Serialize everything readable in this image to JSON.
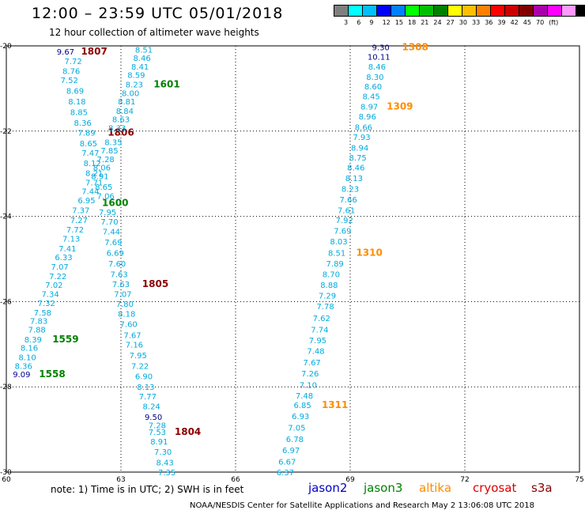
{
  "header": {
    "title": "12:00 – 23:59 UTC 05/01/2018",
    "subtitle": "12 hour collection of altimeter wave heights"
  },
  "colorbar": {
    "colors": [
      "#7f7f7f",
      "#00ffff",
      "#00bfff",
      "#0000ff",
      "#007fff",
      "#00ff00",
      "#00bf00",
      "#008000",
      "#ffff00",
      "#ffbf00",
      "#ff8000",
      "#ff0000",
      "#cc0000",
      "#800000",
      "#aa00aa",
      "#ff00ff",
      "#ff99ff",
      "#000000"
    ],
    "labels": [
      "3",
      "6",
      "9",
      "12",
      "15",
      "18",
      "21",
      "24",
      "27",
      "30",
      "33",
      "36",
      "39",
      "42",
      "45",
      "70",
      "(ft)"
    ]
  },
  "map": {
    "x_ticks": [
      "60",
      "63",
      "66",
      "69",
      "72",
      "75"
    ],
    "y_ticks": [
      "-20",
      "-22",
      "-24",
      "-26",
      "-28",
      "-30"
    ],
    "lon_range": [
      60,
      75
    ],
    "lat_range": [
      -30,
      -20
    ]
  },
  "tracks": [
    {
      "lon": 61.55,
      "lat": -20.13,
      "text": "9.67",
      "color": "#00008b"
    },
    {
      "lon": 62.3,
      "lat": -20.13,
      "text": "1807",
      "color": "#8b0000",
      "bold": true
    },
    {
      "lon": 61.75,
      "lat": -20.35,
      "text": "7.72",
      "color": "#00aadd"
    },
    {
      "lon": 61.7,
      "lat": -20.58,
      "text": "8.76",
      "color": "#00aadd"
    },
    {
      "lon": 61.65,
      "lat": -20.8,
      "text": "7.52",
      "color": "#00aadd"
    },
    {
      "lon": 61.8,
      "lat": -21.05,
      "text": "8.69",
      "color": "#00aadd"
    },
    {
      "lon": 61.85,
      "lat": -21.3,
      "text": "8.18",
      "color": "#00aadd"
    },
    {
      "lon": 61.9,
      "lat": -21.55,
      "text": "8.85",
      "color": "#00aadd"
    },
    {
      "lon": 62.0,
      "lat": -21.8,
      "text": "8.36",
      "color": "#00aadd"
    },
    {
      "lon": 62.1,
      "lat": -22.03,
      "text": "7.89",
      "color": "#00aadd"
    },
    {
      "lon": 63.0,
      "lat": -22.03,
      "text": "1806",
      "color": "#8b0000",
      "bold": true
    },
    {
      "lon": 62.15,
      "lat": -22.28,
      "text": "8.65",
      "color": "#00aadd"
    },
    {
      "lon": 62.2,
      "lat": -22.5,
      "text": "7.47",
      "color": "#00aadd"
    },
    {
      "lon": 62.25,
      "lat": -22.75,
      "text": "8.12",
      "color": "#00aadd"
    },
    {
      "lon": 62.3,
      "lat": -22.98,
      "text": "8.21",
      "color": "#00aadd"
    },
    {
      "lon": 62.3,
      "lat": -23.2,
      "text": "7.71",
      "color": "#00aadd"
    },
    {
      "lon": 62.2,
      "lat": -23.4,
      "text": "7.44",
      "color": "#00aadd"
    },
    {
      "lon": 62.1,
      "lat": -23.62,
      "text": "6.95",
      "color": "#00aadd"
    },
    {
      "lon": 61.95,
      "lat": -23.85,
      "text": "7.37",
      "color": "#00aadd"
    },
    {
      "lon": 61.9,
      "lat": -24.08,
      "text": "7.27",
      "color": "#00aadd"
    },
    {
      "lon": 61.8,
      "lat": -24.3,
      "text": "7.72",
      "color": "#00aadd"
    },
    {
      "lon": 61.7,
      "lat": -24.52,
      "text": "7.13",
      "color": "#00aadd"
    },
    {
      "lon": 61.6,
      "lat": -24.75,
      "text": "7.41",
      "color": "#00aadd"
    },
    {
      "lon": 61.5,
      "lat": -24.95,
      "text": "6.33",
      "color": "#00aadd"
    },
    {
      "lon": 61.4,
      "lat": -25.18,
      "text": "7.07",
      "color": "#00aadd"
    },
    {
      "lon": 61.35,
      "lat": -25.4,
      "text": "7.22",
      "color": "#00aadd"
    },
    {
      "lon": 61.25,
      "lat": -25.6,
      "text": "7.02",
      "color": "#00aadd"
    },
    {
      "lon": 61.15,
      "lat": -25.82,
      "text": "7.34",
      "color": "#00aadd"
    },
    {
      "lon": 61.05,
      "lat": -26.03,
      "text": "7.32",
      "color": "#00aadd"
    },
    {
      "lon": 60.95,
      "lat": -26.25,
      "text": "7.58",
      "color": "#00aadd"
    },
    {
      "lon": 60.85,
      "lat": -26.45,
      "text": "7.83",
      "color": "#00aadd"
    },
    {
      "lon": 60.8,
      "lat": -26.65,
      "text": "7.88",
      "color": "#00aadd"
    },
    {
      "lon": 60.7,
      "lat": -26.88,
      "text": "8.39",
      "color": "#00aadd"
    },
    {
      "lon": 61.55,
      "lat": -26.88,
      "text": "1559",
      "color": "#008000",
      "bold": true
    },
    {
      "lon": 60.6,
      "lat": -27.08,
      "text": "8.16",
      "color": "#00aadd"
    },
    {
      "lon": 60.55,
      "lat": -27.3,
      "text": "8.10",
      "color": "#00aadd"
    },
    {
      "lon": 60.45,
      "lat": -27.5,
      "text": "8.36",
      "color": "#00aadd"
    },
    {
      "lon": 60.4,
      "lat": -27.7,
      "text": "9.09",
      "color": "#00008b"
    },
    {
      "lon": 61.2,
      "lat": -27.7,
      "text": "1558",
      "color": "#008000",
      "bold": true
    },
    {
      "lon": 63.6,
      "lat": -20.08,
      "text": "8.51",
      "color": "#00aadd"
    },
    {
      "lon": 63.55,
      "lat": -20.28,
      "text": "8.46",
      "color": "#00aadd"
    },
    {
      "lon": 63.5,
      "lat": -20.48,
      "text": "8.41",
      "color": "#00aadd"
    },
    {
      "lon": 63.4,
      "lat": -20.68,
      "text": "8.59",
      "color": "#00aadd"
    },
    {
      "lon": 63.35,
      "lat": -20.9,
      "text": "8.23",
      "color": "#00aadd"
    },
    {
      "lon": 64.2,
      "lat": -20.9,
      "text": "1601",
      "color": "#008000",
      "bold": true
    },
    {
      "lon": 63.25,
      "lat": -21.1,
      "text": "8.00",
      "color": "#00aadd"
    },
    {
      "lon": 63.15,
      "lat": -21.3,
      "text": "8.81",
      "color": "#00aadd"
    },
    {
      "lon": 63.1,
      "lat": -21.52,
      "text": "8.84",
      "color": "#00aadd"
    },
    {
      "lon": 63.0,
      "lat": -21.72,
      "text": "8.63",
      "color": "#00aadd"
    },
    {
      "lon": 62.9,
      "lat": -21.92,
      "text": "8.33",
      "color": "#00aadd"
    },
    {
      "lon": 62.8,
      "lat": -22.25,
      "text": "8.35",
      "color": "#00aadd"
    },
    {
      "lon": 62.7,
      "lat": -22.45,
      "text": "7.85",
      "color": "#00aadd"
    },
    {
      "lon": 62.6,
      "lat": -22.65,
      "text": "7.28",
      "color": "#00aadd"
    },
    {
      "lon": 62.5,
      "lat": -22.85,
      "text": "8.06",
      "color": "#00aadd"
    },
    {
      "lon": 62.45,
      "lat": -23.05,
      "text": "8.91",
      "color": "#00aadd"
    },
    {
      "lon": 62.55,
      "lat": -23.3,
      "text": "8.65",
      "color": "#00aadd"
    },
    {
      "lon": 62.6,
      "lat": -23.52,
      "text": "7.06",
      "color": "#00aadd"
    },
    {
      "lon": 62.85,
      "lat": -23.68,
      "text": "1600",
      "color": "#008000",
      "bold": true
    },
    {
      "lon": 62.65,
      "lat": -23.9,
      "text": "7.95",
      "color": "#00aadd"
    },
    {
      "lon": 62.7,
      "lat": -24.12,
      "text": "7.70",
      "color": "#00aadd"
    },
    {
      "lon": 62.75,
      "lat": -24.35,
      "text": "7.44",
      "color": "#00aadd"
    },
    {
      "lon": 62.8,
      "lat": -24.6,
      "text": "7.69",
      "color": "#00aadd"
    },
    {
      "lon": 62.85,
      "lat": -24.85,
      "text": "6.69",
      "color": "#00aadd"
    },
    {
      "lon": 62.9,
      "lat": -25.1,
      "text": "7.60",
      "color": "#00aadd"
    },
    {
      "lon": 62.95,
      "lat": -25.35,
      "text": "7.63",
      "color": "#00aadd"
    },
    {
      "lon": 63.0,
      "lat": -25.58,
      "text": "7.63",
      "color": "#00aadd"
    },
    {
      "lon": 63.9,
      "lat": -25.58,
      "text": "1805",
      "color": "#8b0000",
      "bold": true
    },
    {
      "lon": 63.05,
      "lat": -25.82,
      "text": "7.07",
      "color": "#00aadd"
    },
    {
      "lon": 63.1,
      "lat": -26.05,
      "text": "7.80",
      "color": "#00aadd"
    },
    {
      "lon": 63.15,
      "lat": -26.28,
      "text": "8.18",
      "color": "#00aadd"
    },
    {
      "lon": 63.2,
      "lat": -26.52,
      "text": "7.60",
      "color": "#00aadd"
    },
    {
      "lon": 63.3,
      "lat": -26.78,
      "text": "7.67",
      "color": "#00aadd"
    },
    {
      "lon": 63.35,
      "lat": -27.0,
      "text": "7.16",
      "color": "#00aadd"
    },
    {
      "lon": 63.45,
      "lat": -27.25,
      "text": "7.95",
      "color": "#00aadd"
    },
    {
      "lon": 63.5,
      "lat": -27.5,
      "text": "7.22",
      "color": "#00aadd"
    },
    {
      "lon": 63.6,
      "lat": -27.75,
      "text": "6.90",
      "color": "#00aadd"
    },
    {
      "lon": 63.65,
      "lat": -28.0,
      "text": "8.13",
      "color": "#00aadd"
    },
    {
      "lon": 63.7,
      "lat": -28.22,
      "text": "7.77",
      "color": "#00aadd"
    },
    {
      "lon": 63.8,
      "lat": -28.45,
      "text": "8.24",
      "color": "#00aadd"
    },
    {
      "lon": 63.85,
      "lat": -28.7,
      "text": "9.50",
      "color": "#00008b"
    },
    {
      "lon": 63.95,
      "lat": -28.9,
      "text": "7.28",
      "color": "#00aadd"
    },
    {
      "lon": 63.95,
      "lat": -29.05,
      "text": "7.53",
      "color": "#00aadd"
    },
    {
      "lon": 64.75,
      "lat": -29.05,
      "text": "1804",
      "color": "#8b0000",
      "bold": true
    },
    {
      "lon": 64.0,
      "lat": -29.28,
      "text": "8.91",
      "color": "#00aadd"
    },
    {
      "lon": 64.1,
      "lat": -29.52,
      "text": "7.30",
      "color": "#00aadd"
    },
    {
      "lon": 64.15,
      "lat": -29.77,
      "text": "8.43",
      "color": "#00aadd"
    },
    {
      "lon": 64.2,
      "lat": -30.0,
      "text": "7.35",
      "color": "#00aadd"
    },
    {
      "lon": 69.8,
      "lat": -20.03,
      "text": "9.30",
      "color": "#00008b"
    },
    {
      "lon": 70.7,
      "lat": -20.03,
      "text": "1308",
      "color": "#ff8c00",
      "bold": true
    },
    {
      "lon": 69.75,
      "lat": -20.25,
      "text": "10.11",
      "color": "#00008b"
    },
    {
      "lon": 69.7,
      "lat": -20.48,
      "text": "8.46",
      "color": "#00aadd"
    },
    {
      "lon": 69.65,
      "lat": -20.72,
      "text": "8.30",
      "color": "#00aadd"
    },
    {
      "lon": 69.6,
      "lat": -20.95,
      "text": "8.60",
      "color": "#00aadd"
    },
    {
      "lon": 69.55,
      "lat": -21.18,
      "text": "8.45",
      "color": "#00aadd"
    },
    {
      "lon": 69.5,
      "lat": -21.42,
      "text": "8.97",
      "color": "#00aadd"
    },
    {
      "lon": 70.3,
      "lat": -21.42,
      "text": "1309",
      "color": "#ff8c00",
      "bold": true
    },
    {
      "lon": 69.45,
      "lat": -21.65,
      "text": "8.96",
      "color": "#00aadd"
    },
    {
      "lon": 69.35,
      "lat": -21.9,
      "text": "8.66",
      "color": "#00aadd"
    },
    {
      "lon": 69.3,
      "lat": -22.13,
      "text": "7.93",
      "color": "#00aadd"
    },
    {
      "lon": 69.25,
      "lat": -22.38,
      "text": "8.94",
      "color": "#00aadd"
    },
    {
      "lon": 69.2,
      "lat": -22.62,
      "text": "8.75",
      "color": "#00aadd"
    },
    {
      "lon": 69.15,
      "lat": -22.85,
      "text": "8.46",
      "color": "#00aadd"
    },
    {
      "lon": 69.1,
      "lat": -23.1,
      "text": "8.13",
      "color": "#00aadd"
    },
    {
      "lon": 69.0,
      "lat": -23.35,
      "text": "8.23",
      "color": "#00aadd"
    },
    {
      "lon": 68.95,
      "lat": -23.6,
      "text": "7.66",
      "color": "#00aadd"
    },
    {
      "lon": 68.9,
      "lat": -23.85,
      "text": "7.61",
      "color": "#00aadd"
    },
    {
      "lon": 68.85,
      "lat": -24.08,
      "text": "7.92",
      "color": "#00aadd"
    },
    {
      "lon": 68.8,
      "lat": -24.33,
      "text": "7.69",
      "color": "#00aadd"
    },
    {
      "lon": 68.7,
      "lat": -24.58,
      "text": "8.03",
      "color": "#00aadd"
    },
    {
      "lon": 68.65,
      "lat": -24.85,
      "text": "8.51",
      "color": "#00aadd"
    },
    {
      "lon": 69.5,
      "lat": -24.85,
      "text": "1310",
      "color": "#ff8c00",
      "bold": true
    },
    {
      "lon": 68.6,
      "lat": -25.1,
      "text": "7.89",
      "color": "#00aadd"
    },
    {
      "lon": 68.5,
      "lat": -25.35,
      "text": "8.70",
      "color": "#00aadd"
    },
    {
      "lon": 68.45,
      "lat": -25.6,
      "text": "8.88",
      "color": "#00aadd"
    },
    {
      "lon": 68.4,
      "lat": -25.85,
      "text": "7.29",
      "color": "#00aadd"
    },
    {
      "lon": 68.35,
      "lat": -26.1,
      "text": "7.78",
      "color": "#00aadd"
    },
    {
      "lon": 68.25,
      "lat": -26.38,
      "text": "7.62",
      "color": "#00aadd"
    },
    {
      "lon": 68.2,
      "lat": -26.65,
      "text": "7.74",
      "color": "#00aadd"
    },
    {
      "lon": 68.15,
      "lat": -26.9,
      "text": "7.95",
      "color": "#00aadd"
    },
    {
      "lon": 68.1,
      "lat": -27.15,
      "text": "7.48",
      "color": "#00aadd"
    },
    {
      "lon": 68.0,
      "lat": -27.42,
      "text": "7.67",
      "color": "#00aadd"
    },
    {
      "lon": 67.95,
      "lat": -27.68,
      "text": "7.26",
      "color": "#00aadd"
    },
    {
      "lon": 67.9,
      "lat": -27.95,
      "text": "7.10",
      "color": "#00aadd"
    },
    {
      "lon": 67.8,
      "lat": -28.2,
      "text": "7.48",
      "color": "#00aadd"
    },
    {
      "lon": 67.75,
      "lat": -28.42,
      "text": "6.85",
      "color": "#00aadd"
    },
    {
      "lon": 68.6,
      "lat": -28.42,
      "text": "1311",
      "color": "#ff8c00",
      "bold": true
    },
    {
      "lon": 67.7,
      "lat": -28.68,
      "text": "6.93",
      "color": "#00aadd"
    },
    {
      "lon": 67.6,
      "lat": -28.95,
      "text": "7.05",
      "color": "#00aadd"
    },
    {
      "lon": 67.55,
      "lat": -29.22,
      "text": "6.78",
      "color": "#00aadd"
    },
    {
      "lon": 67.45,
      "lat": -29.48,
      "text": "6.97",
      "color": "#00aadd"
    },
    {
      "lon": 67.35,
      "lat": -29.75,
      "text": "6.67",
      "color": "#00aadd"
    },
    {
      "lon": 67.3,
      "lat": -30.0,
      "text": "6.37",
      "color": "#00aadd"
    }
  ],
  "note": "note: 1) Time is in UTC; 2) SWH is in feet",
  "satellites": [
    {
      "name": "jason2",
      "color": "#0000cc"
    },
    {
      "name": "jason3",
      "color": "#008000"
    },
    {
      "name": "altika",
      "color": "#ff8c00"
    },
    {
      "name": "cryosat",
      "color": "#dd0000"
    },
    {
      "name": "s3a",
      "color": "#8b0000"
    }
  ],
  "footer": "NOAA/NESDIS Center for Satellite Applications and Research    May  2 13:06:08 UTC 2018"
}
